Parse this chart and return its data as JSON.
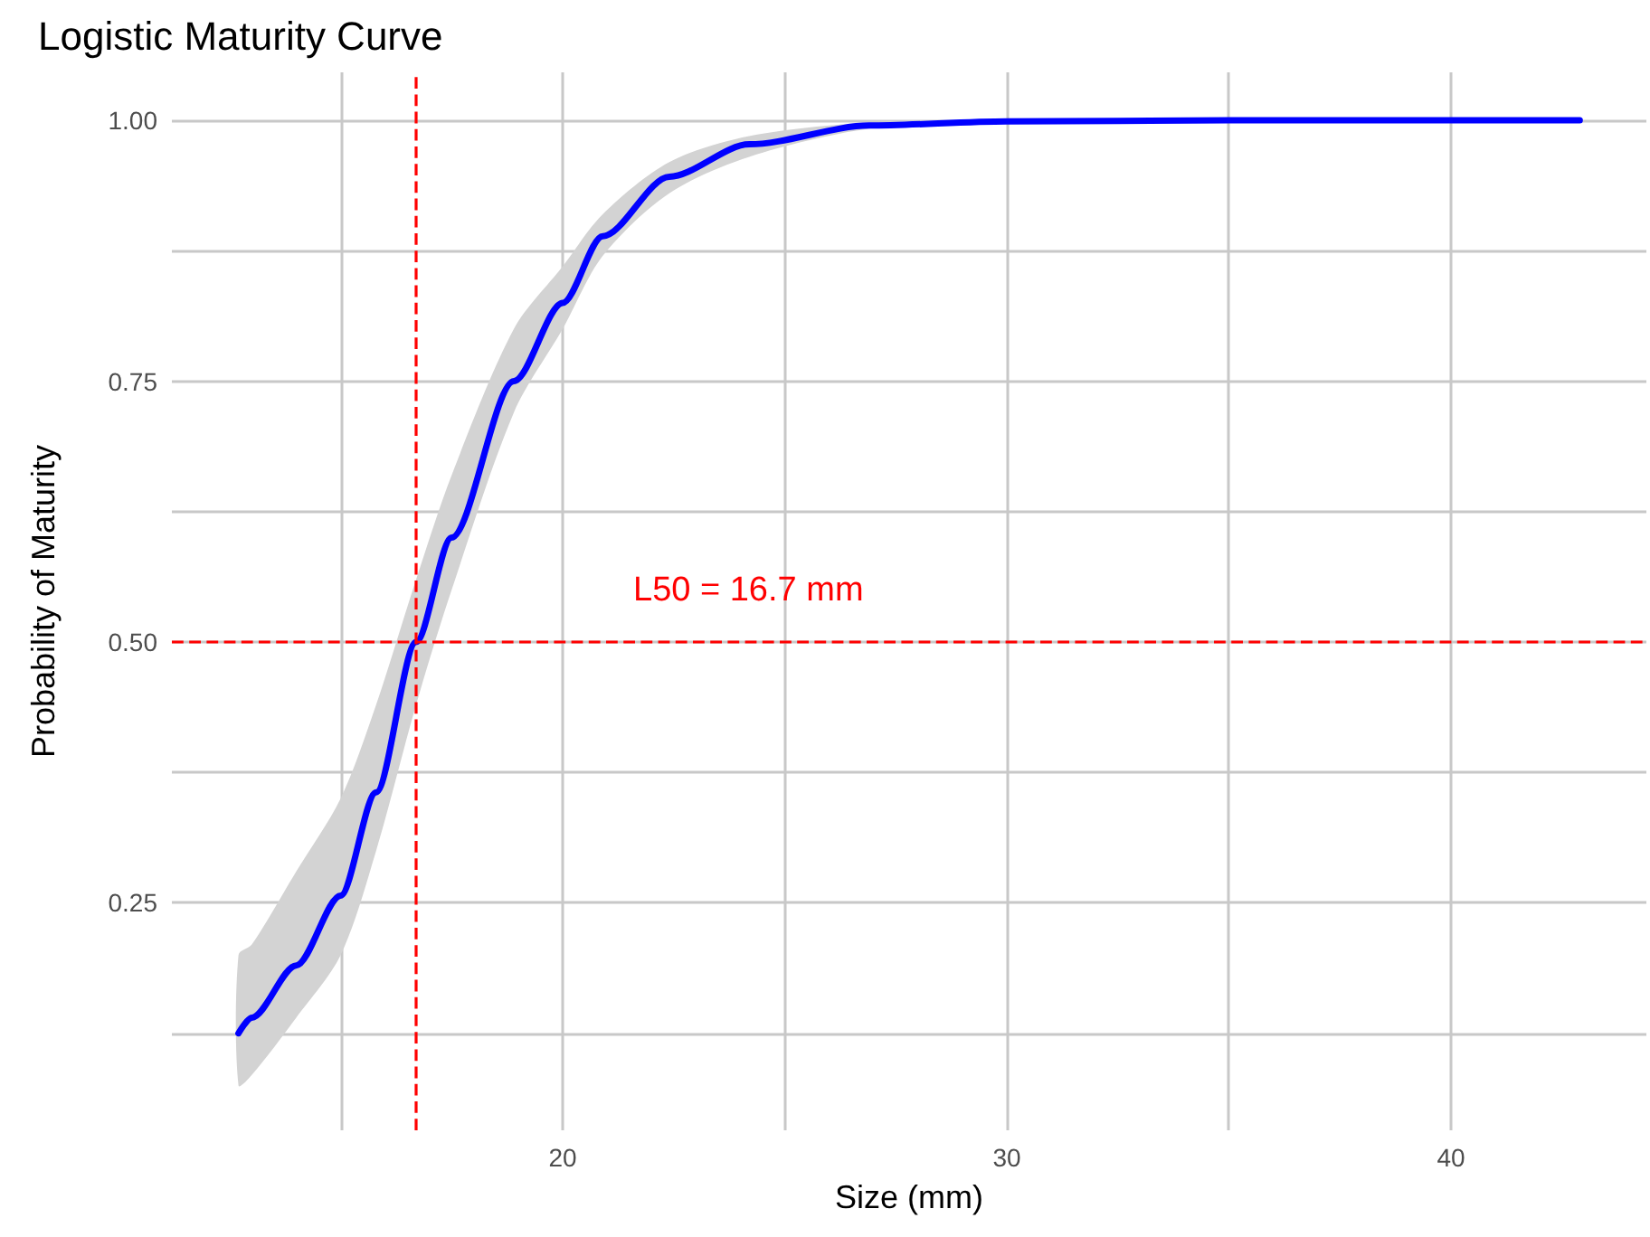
{
  "chart_data": {
    "type": "line",
    "title": "Logistic Maturity Curve",
    "xlabel": "Size (mm)",
    "ylabel": "Probability of Maturity",
    "series": [
      {
        "color": "#0000ff",
        "x": [
          12.7,
          13,
          14,
          15,
          15.8,
          16.7,
          17.5,
          18.9,
          20,
          20.9,
          22.4,
          24.2,
          26.9,
          30,
          35,
          42.9
        ],
        "values": [
          0.125,
          0.14,
          0.19,
          0.257,
          0.356,
          0.5,
          0.6,
          0.75,
          0.825,
          0.889,
          0.946,
          0.977,
          0.995,
          0.999,
          1.0,
          1.0
        ],
        "lower": [
          0.075,
          0.085,
          0.14,
          0.2,
          0.3,
          0.44,
          0.55,
          0.72,
          0.8,
          0.87,
          0.93,
          0.965,
          0.992,
          0.999,
          1.0,
          1.0
        ],
        "upper": [
          0.2,
          0.21,
          0.28,
          0.35,
          0.44,
          0.56,
          0.66,
          0.8,
          0.86,
          0.91,
          0.96,
          0.985,
          0.998,
          1.0,
          1.0,
          1.0
        ]
      }
    ],
    "xlim": [
      11.2,
      44.4
    ],
    "xticks": [
      {
        "value": 15,
        "label": null
      },
      20,
      {
        "value": 25,
        "label": null
      },
      30,
      {
        "value": 35,
        "label": null
      },
      40
    ],
    "ylim": [
      0.032,
      1.046
    ],
    "yticks": [
      {
        "value": 0.125,
        "label": null
      },
      {
        "value": 0.25,
        "label": "0.25"
      },
      {
        "value": 0.375,
        "label": null
      },
      {
        "value": 0.5,
        "label": "0.50"
      },
      {
        "value": 0.625,
        "label": null
      },
      {
        "value": 0.75,
        "label": "0.75"
      },
      {
        "value": 0.875,
        "label": null
      },
      {
        "value": 1.0,
        "label": "1.00"
      }
    ],
    "ref_lines": [
      {
        "axis": "x",
        "value": 16.7,
        "color": "#ff0000",
        "line_style": "dashed"
      },
      {
        "axis": "y",
        "value": 0.5,
        "color": "#ff0000",
        "line_style": "dashed"
      }
    ],
    "annotations": [
      "L50 = 16.7 mm"
    ],
    "grid": true,
    "marker": "none",
    "line_style": "solid"
  }
}
